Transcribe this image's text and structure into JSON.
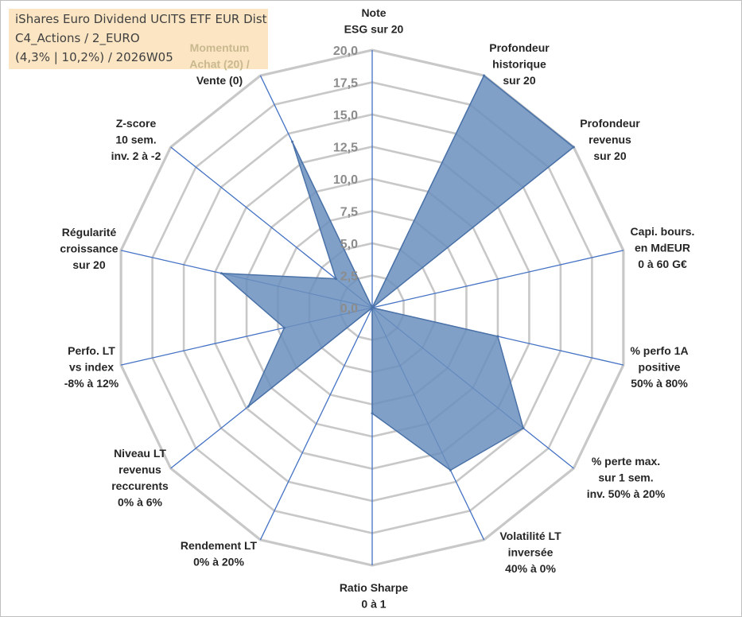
{
  "title": {
    "line1": "iShares Euro Dividend UCITS ETF EUR Dist",
    "line2": "C4_Actions / 2_EURO",
    "line3": "(4,3% | 10,2%) / 2026W05"
  },
  "chart_data": {
    "type": "radar",
    "title": "iShares Euro Dividend UCITS ETF EUR Dist",
    "rlim": [
      0,
      20
    ],
    "ticks": [
      "0,0",
      "2,5",
      "5,0",
      "7,5",
      "10,0",
      "12,5",
      "15,0",
      "17,5",
      "20,0"
    ],
    "tick_values": [
      0,
      2.5,
      5,
      7.5,
      10,
      12.5,
      15,
      17.5,
      20
    ],
    "grid_levels": 8,
    "categories": [
      {
        "lines": [
          "Note",
          "ESG sur 20"
        ],
        "value": 0
      },
      {
        "lines": [
          "Profondeur",
          "historique",
          "sur 20"
        ],
        "value": 20
      },
      {
        "lines": [
          "Profondeur",
          "revenus",
          "sur 20"
        ],
        "value": 20
      },
      {
        "lines": [
          "Capi. bours.",
          "en MdEUR",
          "0 à 60 G€"
        ],
        "value": 0
      },
      {
        "lines": [
          "% perfo 1A",
          "positive",
          "50% à 80%"
        ],
        "value": 10
      },
      {
        "lines": [
          "% perte max.",
          "sur 1 sem.",
          "inv. 50% à 20%"
        ],
        "value": 15
      },
      {
        "lines": [
          "Volatilité LT",
          "inversée",
          "40% à 0%"
        ],
        "value": 14
      },
      {
        "lines": [
          "Ratio Sharpe",
          "0 à 1"
        ],
        "value": 8.2
      },
      {
        "lines": [
          "Rendement LT",
          "0% à 20%"
        ],
        "value": 0
      },
      {
        "lines": [
          "Niveau LT",
          "revenus",
          "reccurents",
          "0% à 6%"
        ],
        "value": 12.3
      },
      {
        "lines": [
          "Perfo. LT",
          "vs index",
          "-8% à 12%"
        ],
        "value": 7
      },
      {
        "lines": [
          "Régularité",
          "croissance",
          "sur 20"
        ],
        "value": 12
      },
      {
        "lines": [
          "Z-score",
          "10 sem.",
          "inv. 2 à -2"
        ],
        "value": 3.6
      },
      {
        "lines": [
          "Momentum",
          "Achat (20) /",
          "Vente (0)"
        ],
        "value": 14.3
      }
    ],
    "colors": {
      "fill": "#6b8fbd",
      "stroke": "#4a72a8",
      "spoke": "#4472c4",
      "grid": "#c8c8c8",
      "tick": "#8c8c8c",
      "highlight": "#c9b98f"
    }
  }
}
